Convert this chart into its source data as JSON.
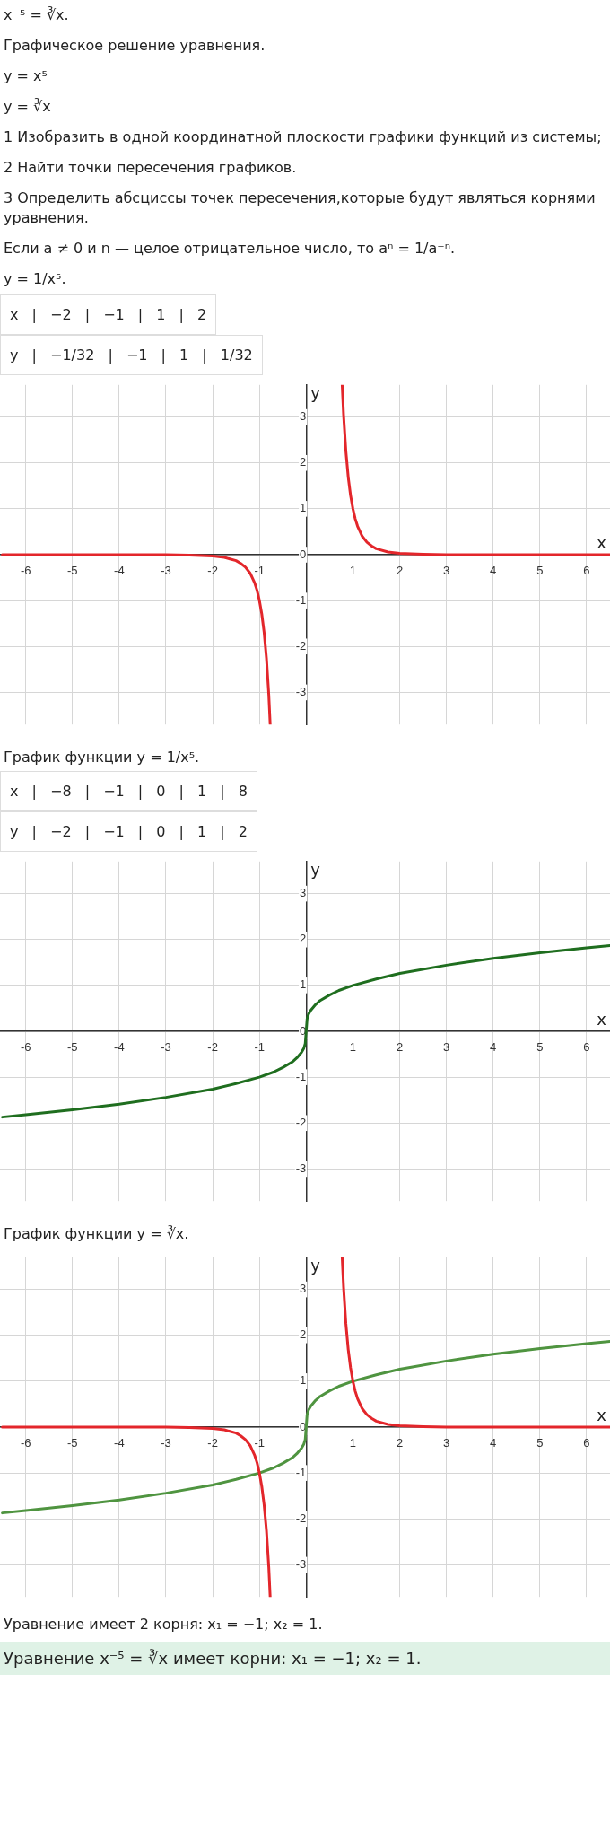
{
  "chart_data": [
    {
      "type": "line",
      "annotations": [
        "x⁻⁵ = ∛x.",
        "Графическое решение уравнения.",
        "y = x⁵",
        "y = ∛x",
        "1 Изобразить в одной координатной плоскости графики функций из системы;",
        "2 Найти точки пересечения графиков.",
        "3 Определить абсциссы точек пересечения,которые будут являться корнями уравнения.",
        "Если a ≠ 0 и n — целое отрицательное число, то aⁿ = 1/a⁻ⁿ.",
        "y = 1/x⁵.",
        "x | −2 | −1 | 1 | 2",
        "y | −1/32 | −1 | 1 | 1/32"
      ],
      "xlabel": "x",
      "ylabel": "y",
      "xlim": [
        -6.55,
        6.5
      ],
      "ylim": [
        -3.7,
        3.7
      ],
      "xticks": [
        -6,
        -5,
        -4,
        -3,
        -2,
        -1,
        1,
        2,
        3,
        4,
        5,
        6
      ],
      "yticks": [
        -3,
        -2,
        -1,
        0,
        1,
        2,
        3
      ],
      "grid": true,
      "legend": false,
      "marker": "none",
      "series": [
        {
          "color": "#e3262b",
          "x": [
            -6.5,
            -5,
            -4,
            -3,
            -2.5,
            -2,
            -1.75,
            -1.5,
            -1.4,
            -1.3,
            -1.2,
            -1.1,
            -1.05,
            -1,
            -0.95,
            -0.9,
            -0.85,
            -0.8,
            -0.77
          ],
          "values": [
            0,
            0,
            0,
            0,
            -0.01,
            -0.03,
            -0.06,
            -0.13,
            -0.19,
            -0.27,
            -0.4,
            -0.62,
            -0.78,
            -1,
            -1.29,
            -1.69,
            -2.25,
            -3.05,
            -3.7
          ]
        },
        {
          "color": "#e3262b",
          "x": [
            0.77,
            0.8,
            0.85,
            0.9,
            0.95,
            1,
            1.05,
            1.1,
            1.2,
            1.3,
            1.4,
            1.5,
            1.75,
            2,
            2.5,
            3,
            4,
            5,
            6.5
          ],
          "values": [
            3.7,
            3.05,
            2.25,
            1.69,
            1.29,
            1,
            0.78,
            0.62,
            0.4,
            0.27,
            0.19,
            0.13,
            0.06,
            0.03,
            0.01,
            0,
            0,
            0,
            0
          ]
        }
      ]
    },
    {
      "type": "line",
      "title": "График функции y = 1/x⁵.",
      "annotations": [
        "x | −8 | −1 | 0 | 1 | 8",
        "y | −2 | −1 | 0 | 1 | 2"
      ],
      "xlabel": "x",
      "ylabel": "y",
      "xlim": [
        -6.55,
        6.5
      ],
      "ylim": [
        -3.7,
        3.7
      ],
      "xticks": [
        -6,
        -5,
        -4,
        -3,
        -2,
        -1,
        1,
        2,
        3,
        4,
        5,
        6
      ],
      "yticks": [
        -3,
        -2,
        -1,
        0,
        1,
        2,
        3
      ],
      "grid": true,
      "legend": false,
      "marker": "none",
      "series": [
        {
          "color": "#1f6e1f",
          "x": [
            -6.5,
            -6,
            -5,
            -4,
            -3,
            -2,
            -1.5,
            -1,
            -0.7,
            -0.5,
            -0.3,
            -0.2,
            -0.1,
            -0.05,
            -0.02,
            0,
            0.02,
            0.05,
            0.1,
            0.2,
            0.3,
            0.5,
            0.7,
            1,
            1.5,
            2,
            3,
            4,
            5,
            6,
            6.5
          ],
          "values": [
            -1.87,
            -1.82,
            -1.71,
            -1.59,
            -1.44,
            -1.26,
            -1.14,
            -1,
            -0.89,
            -0.79,
            -0.67,
            -0.58,
            -0.46,
            -0.37,
            -0.27,
            0,
            0.27,
            0.37,
            0.46,
            0.58,
            0.67,
            0.79,
            0.89,
            1,
            1.14,
            1.26,
            1.44,
            1.59,
            1.71,
            1.82,
            1.87
          ]
        }
      ]
    },
    {
      "type": "line",
      "title": "График функции y = ∛x.",
      "subtitle": "Уравнение имеет 2 корня: x₁ = −1;  x₂ = 1.\nУравнение x⁻⁵ = ∛x имеет корни: x₁ = −1;  x₂ = 1.",
      "xlabel": "x",
      "ylabel": "y",
      "xlim": [
        -6.55,
        6.5
      ],
      "ylim": [
        -3.7,
        3.7
      ],
      "xticks": [
        -6,
        -5,
        -4,
        -3,
        -2,
        -1,
        1,
        2,
        3,
        4,
        5,
        6
      ],
      "yticks": [
        -3,
        -2,
        -1,
        0,
        1,
        2,
        3
      ],
      "grid": true,
      "legend": false,
      "marker": "none",
      "series": [
        {
          "color": "#e3262b",
          "x": [
            -6.5,
            -5,
            -4,
            -3,
            -2.5,
            -2,
            -1.75,
            -1.5,
            -1.4,
            -1.3,
            -1.2,
            -1.1,
            -1.05,
            -1,
            -0.95,
            -0.9,
            -0.85,
            -0.8,
            -0.77
          ],
          "values": [
            0,
            0,
            0,
            0,
            -0.01,
            -0.03,
            -0.06,
            -0.13,
            -0.19,
            -0.27,
            -0.4,
            -0.62,
            -0.78,
            -1,
            -1.29,
            -1.69,
            -2.25,
            -3.05,
            -3.7
          ]
        },
        {
          "color": "#e3262b",
          "x": [
            0.77,
            0.8,
            0.85,
            0.9,
            0.95,
            1,
            1.05,
            1.1,
            1.2,
            1.3,
            1.4,
            1.5,
            1.75,
            2,
            2.5,
            3,
            4,
            5,
            6.5
          ],
          "values": [
            3.7,
            3.05,
            2.25,
            1.69,
            1.29,
            1,
            0.78,
            0.62,
            0.4,
            0.27,
            0.19,
            0.13,
            0.06,
            0.03,
            0.01,
            0,
            0,
            0,
            0
          ]
        },
        {
          "color": "#4f9440",
          "x": [
            -6.5,
            -6,
            -5,
            -4,
            -3,
            -2,
            -1.5,
            -1,
            -0.7,
            -0.5,
            -0.3,
            -0.2,
            -0.1,
            -0.05,
            -0.02,
            0,
            0.02,
            0.05,
            0.1,
            0.2,
            0.3,
            0.5,
            0.7,
            1,
            1.5,
            2,
            3,
            4,
            5,
            6,
            6.5
          ],
          "values": [
            -1.87,
            -1.82,
            -1.71,
            -1.59,
            -1.44,
            -1.26,
            -1.14,
            -1,
            -0.89,
            -0.79,
            -0.67,
            -0.58,
            -0.46,
            -0.37,
            -0.27,
            0,
            0.27,
            0.37,
            0.46,
            0.58,
            0.67,
            0.79,
            0.89,
            1,
            1.14,
            1.26,
            1.44,
            1.59,
            1.71,
            1.82,
            1.87
          ]
        }
      ]
    }
  ]
}
